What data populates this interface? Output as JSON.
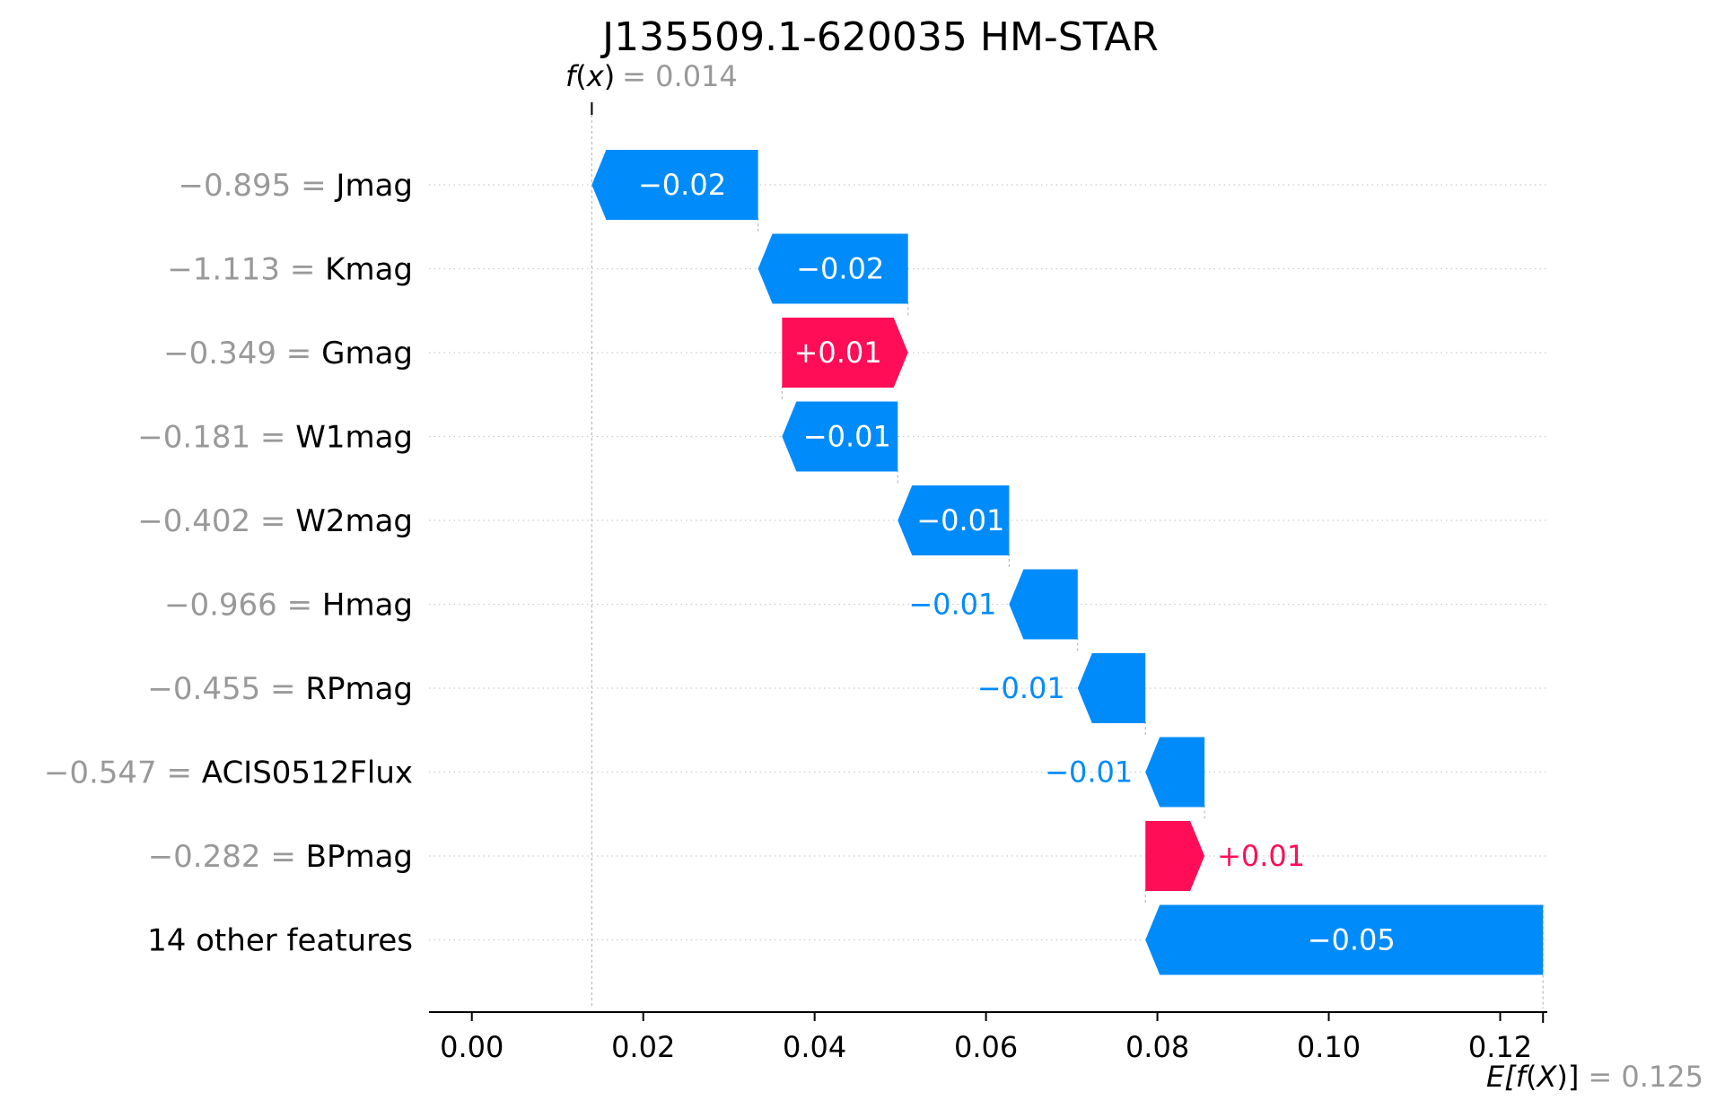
{
  "chart_data": {
    "type": "waterfall",
    "title": "J135509.1-620035 HM-STAR",
    "fx": {
      "label_func": "f",
      "label_var": "x",
      "value_text": "= 0.014",
      "value": 0.014
    },
    "efx": {
      "label_pre": "E[",
      "label_func": "f",
      "label_var": "X",
      "label_post": ")]",
      "value_text": "= 0.125",
      "value": 0.125
    },
    "xlim": [
      -0.005,
      0.1255
    ],
    "xticks": [
      {
        "value": 0.0,
        "label": "0.00"
      },
      {
        "value": 0.02,
        "label": "0.02"
      },
      {
        "value": 0.04,
        "label": "0.04"
      },
      {
        "value": 0.06,
        "label": "0.06"
      },
      {
        "value": 0.08,
        "label": "0.08"
      },
      {
        "value": 0.1,
        "label": "0.10"
      },
      {
        "value": 0.12,
        "label": "0.12"
      }
    ],
    "features": [
      {
        "value_text": "−0.895 =",
        "name": "Jmag",
        "start": 0.0334,
        "end": 0.014,
        "label": "−0.02",
        "sign": "neg"
      },
      {
        "value_text": "−1.113 =",
        "name": "Kmag",
        "start": 0.0509,
        "end": 0.0334,
        "label": "−0.02",
        "sign": "neg"
      },
      {
        "value_text": "−0.349 =",
        "name": "Gmag",
        "start": 0.0362,
        "end": 0.0509,
        "label": "+0.01",
        "sign": "pos"
      },
      {
        "value_text": "−0.181 =",
        "name": "W1mag",
        "start": 0.0497,
        "end": 0.0362,
        "label": "−0.01",
        "sign": "neg"
      },
      {
        "value_text": "−0.402 =",
        "name": "W2mag",
        "start": 0.0627,
        "end": 0.0497,
        "label": "−0.01",
        "sign": "neg"
      },
      {
        "value_text": "−0.966 =",
        "name": "Hmag",
        "start": 0.0707,
        "end": 0.0627,
        "label": "−0.01",
        "sign": "neg"
      },
      {
        "value_text": "−0.455 =",
        "name": "RPmag",
        "start": 0.0786,
        "end": 0.0707,
        "label": "−0.01",
        "sign": "neg"
      },
      {
        "value_text": "−0.547 =",
        "name": "ACIS0512Flux",
        "start": 0.0855,
        "end": 0.0786,
        "label": "−0.01",
        "sign": "neg"
      },
      {
        "value_text": "−0.282 =",
        "name": "BPmag",
        "start": 0.0786,
        "end": 0.0855,
        "label": "+0.01",
        "sign": "pos"
      },
      {
        "value_text": "",
        "name": "14 other features",
        "start": 0.125,
        "end": 0.0786,
        "label": "−0.05",
        "sign": "neg"
      }
    ],
    "colors": {
      "positive": "#ff0d57",
      "negative": "#008bfb",
      "value_gray": "#999999",
      "grid": "#cccccc"
    }
  }
}
